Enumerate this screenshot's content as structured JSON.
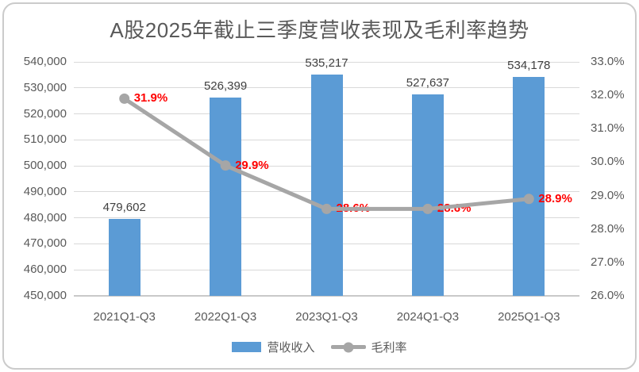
{
  "chart_data": {
    "type": "combo",
    "title": "A股2025年截止三季度营收表现及毛利率趋势",
    "categories": [
      "2021Q1-Q3",
      "2022Q1-Q3",
      "2023Q1-Q3",
      "2024Q1-Q3",
      "2025Q1-Q3"
    ],
    "series": [
      {
        "name": "营收收入",
        "type": "bar",
        "axis": "left",
        "color": "#5B9BD5",
        "values": [
          479602,
          526399,
          535217,
          527637,
          534178
        ],
        "data_labels": [
          "479,602",
          "526,399",
          "535,217",
          "527,637",
          "534,178"
        ]
      },
      {
        "name": "毛利率",
        "type": "line",
        "axis": "right",
        "color": "#A6A6A6",
        "label_color": "#FF0000",
        "values": [
          31.9,
          29.9,
          28.6,
          28.6,
          28.9
        ],
        "data_labels": [
          "31.9%",
          "29.9%",
          "28.6%",
          "28.6%",
          "28.9%"
        ]
      }
    ],
    "left_axis": {
      "min": 450000,
      "max": 540000,
      "step": 10000,
      "tick_labels": [
        "540,000",
        "530,000",
        "520,000",
        "510,000",
        "500,000",
        "490,000",
        "480,000",
        "470,000",
        "460,000",
        "450,000"
      ]
    },
    "right_axis": {
      "min": 26.0,
      "max": 33.0,
      "step": 1.0,
      "tick_labels": [
        "33.0%",
        "32.0%",
        "31.0%",
        "30.0%",
        "29.0%",
        "28.0%",
        "27.0%",
        "26.0%"
      ]
    },
    "grid": true,
    "legend_position": "bottom"
  },
  "colors": {
    "bar": "#5B9BD5",
    "line": "#A6A6A6",
    "grid": "#D9D9D9",
    "baseline": "#C9C9C9",
    "axis_text": "#595959",
    "bar_label_text": "#404040",
    "line_label_text": "#FF0000",
    "title_text": "#595959",
    "frame_border": "#CBCBCB",
    "background": "#FFFFFF"
  }
}
